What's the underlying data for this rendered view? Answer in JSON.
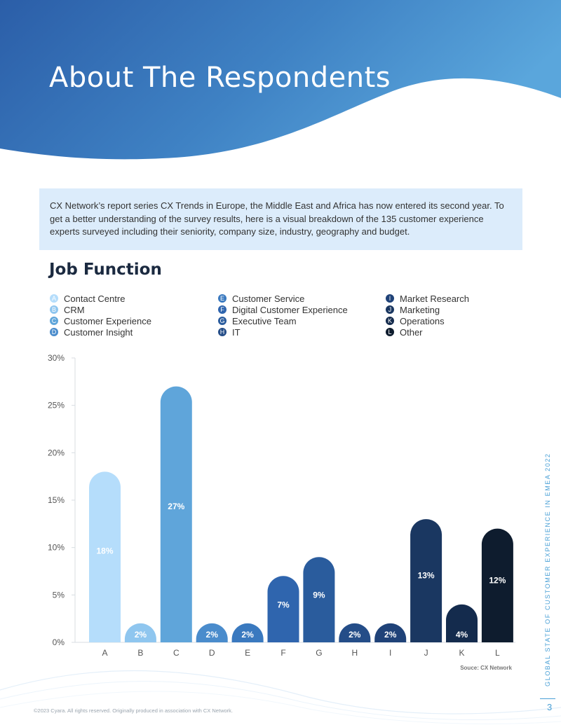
{
  "header": {
    "title": "About The Respondents"
  },
  "intro": {
    "text": "CX Network’s report series CX Trends in Europe, the Middle East and Africa has now entered its second year. To get a better understanding of the survey results, here is a visual breakdown of the 135 customer experience experts surveyed including their seniority, company size, industry, geography and budget."
  },
  "section": {
    "title": "Job Function"
  },
  "legend": {
    "items": [
      {
        "letter": "A",
        "label": "Contact Centre",
        "color": "#b5ddfb"
      },
      {
        "letter": "B",
        "label": "CRM",
        "color": "#8fc6ef"
      },
      {
        "letter": "C",
        "label": "Customer Experience",
        "color": "#5fa5da"
      },
      {
        "letter": "D",
        "label": "Customer Insight",
        "color": "#4a8ccc"
      },
      {
        "letter": "E",
        "label": "Customer Service",
        "color": "#3a79bf"
      },
      {
        "letter": "F",
        "label": "Digital Customer Experience",
        "color": "#2f65ae"
      },
      {
        "letter": "G",
        "label": "Executive Team",
        "color": "#2a5c9d"
      },
      {
        "letter": "H",
        "label": "IT",
        "color": "#244d88"
      },
      {
        "letter": "I",
        "label": "Market Research",
        "color": "#1f4278"
      },
      {
        "letter": "J",
        "label": "Marketing",
        "color": "#1a3761"
      },
      {
        "letter": "K",
        "label": "Operations",
        "color": "#142b4d"
      },
      {
        "letter": "L",
        "label": "Other",
        "color": "#0e1c2e"
      }
    ]
  },
  "chart_data": {
    "type": "bar",
    "categories": [
      "A",
      "B",
      "C",
      "D",
      "E",
      "F",
      "G",
      "H",
      "I",
      "J",
      "K",
      "L"
    ],
    "values": [
      18,
      2,
      27,
      2,
      2,
      7,
      9,
      2,
      2,
      13,
      4,
      12
    ],
    "labels": [
      "18%",
      "2%",
      "27%",
      "2%",
      "2%",
      "7%",
      "9%",
      "2%",
      "2%",
      "13%",
      "4%",
      "12%"
    ],
    "ylim": [
      0,
      30
    ],
    "yticks": [
      "0%",
      "5%",
      "10%",
      "15%",
      "20%",
      "25%",
      "30%"
    ],
    "source": "Souce: CX Network"
  },
  "side": {
    "text": "GLOBAL STATE OF CUSTOMER EXPERIENCE IN EMEA 2022"
  },
  "page": {
    "number": "3"
  },
  "footer": {
    "text": "©2023 Cyara. All rights reserved. Originally produced in association with CX Network."
  }
}
